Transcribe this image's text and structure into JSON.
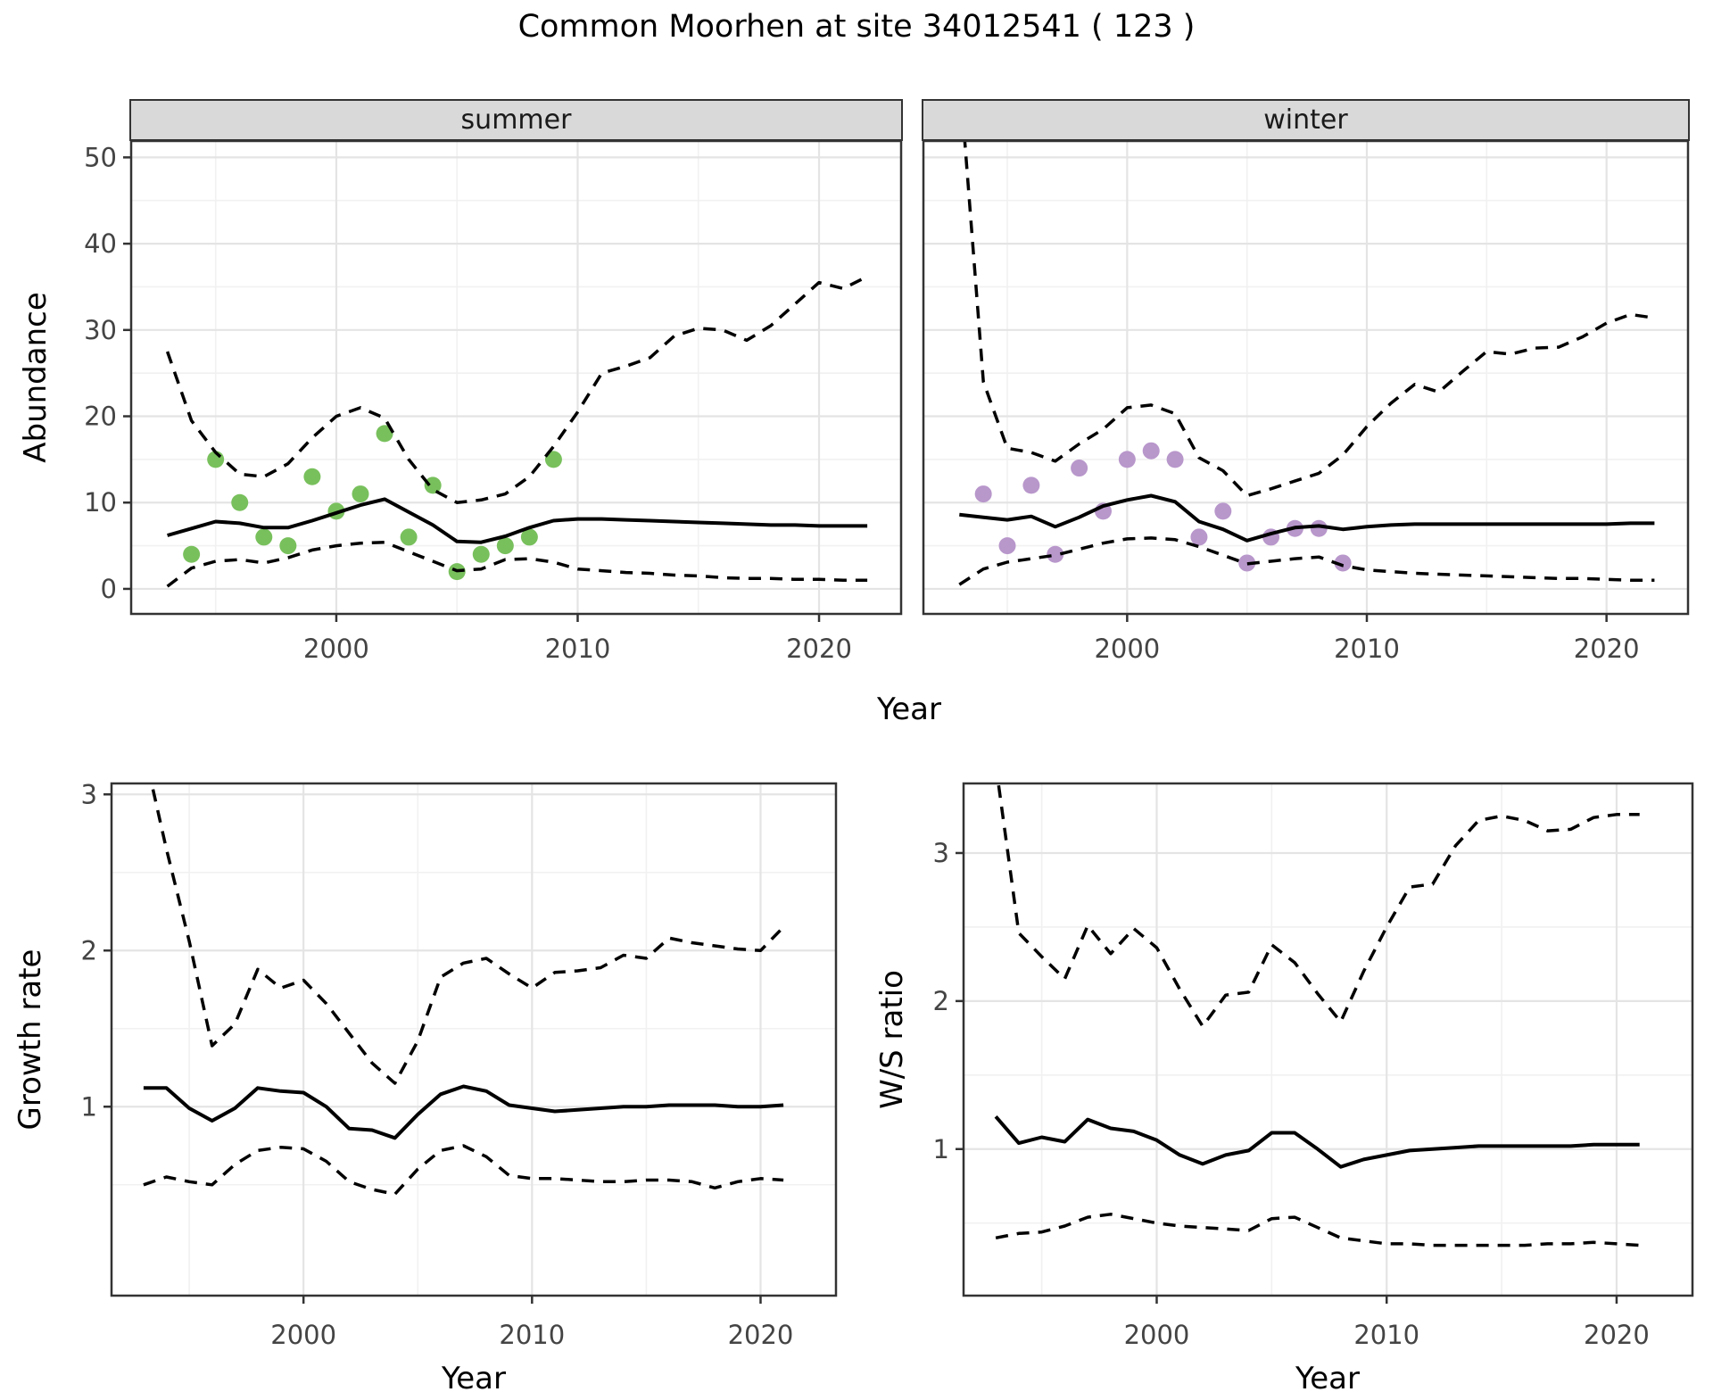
{
  "title": "Common Moorhen at site 34012541 ( 123 )",
  "axes": {
    "abundance_label": "Abundance",
    "year_label": "Year"
  },
  "colors": {
    "summer_points": "#78c05c",
    "winter_points": "#b897cb",
    "line": "#000000",
    "strip_bg": "#d9d9d9",
    "panel_border": "#333333",
    "grid_major": "#e4e4e4",
    "grid_minor": "#f1f1f1",
    "tick_text": "#444444"
  },
  "chart_data": [
    {
      "id": "abundance-summer",
      "type": "line",
      "facet_label": "summer",
      "title": "",
      "xlabel": "Year",
      "ylabel": "Abundance",
      "grid": true,
      "legend": "none",
      "xlim": [
        1991.5,
        2023.4
      ],
      "ylim": [
        -2.9,
        51.9
      ],
      "xticks": [
        2000,
        2010,
        2020
      ],
      "xminor": [
        1995,
        2005,
        2015
      ],
      "yticks": [
        0,
        10,
        20,
        30,
        40,
        50
      ],
      "yminor": [
        5,
        15,
        25,
        35,
        45
      ],
      "x": [
        1993,
        1994,
        1995,
        1996,
        1997,
        1998,
        1999,
        2000,
        2001,
        2002,
        2003,
        2004,
        2005,
        2006,
        2007,
        2008,
        2009,
        2010,
        2011,
        2012,
        2013,
        2014,
        2015,
        2016,
        2017,
        2018,
        2019,
        2020,
        2021,
        2022
      ],
      "series": [
        {
          "name": "median-fit",
          "style": "solid",
          "values": [
            6.2,
            7.0,
            7.8,
            7.6,
            7.1,
            7.1,
            7.9,
            8.8,
            9.7,
            10.4,
            8.9,
            7.4,
            5.5,
            5.4,
            6.1,
            7.1,
            7.9,
            8.1,
            8.1,
            8.0,
            7.9,
            7.8,
            7.7,
            7.6,
            7.5,
            7.4,
            7.4,
            7.3,
            7.3,
            7.3
          ]
        },
        {
          "name": "upper-ci",
          "style": "dashed",
          "values": [
            27.5,
            19.5,
            15.8,
            13.3,
            13.0,
            14.5,
            17.5,
            20.0,
            21.0,
            19.8,
            15.0,
            11.5,
            10.0,
            10.3,
            11.0,
            13.0,
            16.5,
            20.5,
            25.0,
            25.8,
            26.8,
            29.3,
            30.2,
            30.0,
            28.8,
            30.5,
            33.0,
            35.5,
            34.8,
            36.2
          ]
        },
        {
          "name": "lower-ci",
          "style": "dashed",
          "values": [
            0.3,
            2.4,
            3.2,
            3.4,
            3.0,
            3.6,
            4.5,
            5.0,
            5.3,
            5.4,
            4.3,
            3.2,
            2.1,
            2.3,
            3.4,
            3.5,
            3.1,
            2.3,
            2.1,
            1.9,
            1.8,
            1.6,
            1.5,
            1.3,
            1.2,
            1.2,
            1.1,
            1.1,
            1.0,
            1.0
          ]
        },
        {
          "name": "observed-counts",
          "style": "points",
          "color": "#78c05c",
          "x": [
            1994,
            1995,
            1996,
            1997,
            1998,
            1999,
            2000,
            2001,
            2002,
            2003,
            2004,
            2005,
            2006,
            2007,
            2008,
            2009
          ],
          "values": [
            4,
            15,
            10,
            6,
            5,
            13,
            9,
            11,
            18,
            6,
            12,
            2,
            4,
            5,
            6,
            15
          ]
        }
      ]
    },
    {
      "id": "abundance-winter",
      "type": "line",
      "facet_label": "winter",
      "title": "",
      "xlabel": "Year",
      "ylabel": "Abundance",
      "grid": true,
      "legend": "none",
      "xlim": [
        1991.5,
        2023.4
      ],
      "ylim": [
        -2.9,
        51.9
      ],
      "xticks": [
        2000,
        2010,
        2020
      ],
      "xminor": [
        1995,
        2005,
        2015
      ],
      "yticks": [
        0,
        10,
        20,
        30,
        40,
        50
      ],
      "yminor": [
        5,
        15,
        25,
        35,
        45
      ],
      "x": [
        1993,
        1994,
        1995,
        1996,
        1997,
        1998,
        1999,
        2000,
        2001,
        2002,
        2003,
        2004,
        2005,
        2006,
        2007,
        2008,
        2009,
        2010,
        2011,
        2012,
        2013,
        2014,
        2015,
        2016,
        2017,
        2018,
        2019,
        2020,
        2021,
        2022
      ],
      "series": [
        {
          "name": "median-fit",
          "style": "solid",
          "values": [
            8.6,
            8.3,
            8.0,
            8.4,
            7.2,
            8.3,
            9.6,
            10.3,
            10.8,
            10.1,
            7.8,
            6.9,
            5.6,
            6.4,
            7.1,
            7.3,
            6.9,
            7.2,
            7.4,
            7.5,
            7.5,
            7.5,
            7.5,
            7.5,
            7.5,
            7.5,
            7.5,
            7.5,
            7.6,
            7.6
          ]
        },
        {
          "name": "upper-ci",
          "style": "dashed",
          "values": [
            60,
            24,
            16.3,
            15.8,
            14.8,
            16.8,
            18.5,
            21.0,
            21.3,
            20.3,
            15.2,
            13.7,
            10.8,
            11.6,
            12.5,
            13.4,
            15.5,
            18.8,
            21.5,
            23.7,
            22.8,
            25.2,
            27.5,
            27.2,
            27.9,
            28.0,
            29.2,
            30.8,
            31.8,
            31.4
          ]
        },
        {
          "name": "lower-ci",
          "style": "dashed",
          "values": [
            0.5,
            2.3,
            3.1,
            3.5,
            3.9,
            4.6,
            5.3,
            5.8,
            5.9,
            5.7,
            4.9,
            3.9,
            2.9,
            3.2,
            3.5,
            3.7,
            2.7,
            2.2,
            2.0,
            1.8,
            1.7,
            1.6,
            1.5,
            1.4,
            1.3,
            1.2,
            1.2,
            1.1,
            1.0,
            1.0
          ]
        },
        {
          "name": "observed-counts",
          "style": "points",
          "color": "#b897cb",
          "x": [
            1994,
            1995,
            1996,
            1997,
            1998,
            1999,
            2000,
            2001,
            2002,
            2003,
            2004,
            2005,
            2006,
            2007,
            2008,
            2009
          ],
          "values": [
            11,
            5,
            12,
            4,
            14,
            9,
            15,
            16,
            15,
            6,
            9,
            3,
            6,
            7,
            7,
            3
          ]
        }
      ]
    },
    {
      "id": "growth-rate",
      "type": "line",
      "facet_label": "",
      "title": "",
      "xlabel": "Year",
      "ylabel": "Growth rate",
      "grid": true,
      "legend": "none",
      "xlim": [
        1991.6,
        2023.3
      ],
      "ylim": [
        -0.21,
        3.07
      ],
      "xticks": [
        2000,
        2010,
        2020
      ],
      "xminor": [
        1995,
        2005,
        2015
      ],
      "yticks": [
        1,
        2,
        3
      ],
      "yminor": [
        0.5,
        1.5,
        2.5
      ],
      "x": [
        1993,
        1994,
        1995,
        1996,
        1997,
        1998,
        1999,
        2000,
        2001,
        2002,
        2003,
        2004,
        2005,
        2006,
        2007,
        2008,
        2009,
        2010,
        2011,
        2012,
        2013,
        2014,
        2015,
        2016,
        2017,
        2018,
        2019,
        2020,
        2021
      ],
      "series": [
        {
          "name": "median-fit",
          "style": "solid",
          "values": [
            1.12,
            1.12,
            0.99,
            0.91,
            0.99,
            1.12,
            1.1,
            1.09,
            1.0,
            0.86,
            0.85,
            0.8,
            0.95,
            1.08,
            1.13,
            1.1,
            1.01,
            0.99,
            0.97,
            0.98,
            0.99,
            1.0,
            1.0,
            1.01,
            1.01,
            1.01,
            1.0,
            1.0,
            1.01
          ]
        },
        {
          "name": "upper-ci",
          "style": "dashed",
          "values": [
            3.3,
            2.65,
            2.06,
            1.39,
            1.53,
            1.88,
            1.76,
            1.81,
            1.66,
            1.47,
            1.28,
            1.15,
            1.42,
            1.83,
            1.92,
            1.95,
            1.85,
            1.76,
            1.86,
            1.87,
            1.89,
            1.97,
            1.95,
            2.08,
            2.05,
            2.03,
            2.01,
            2.0,
            2.15
          ]
        },
        {
          "name": "lower-ci",
          "style": "dashed",
          "values": [
            0.5,
            0.55,
            0.52,
            0.5,
            0.63,
            0.72,
            0.74,
            0.73,
            0.65,
            0.52,
            0.47,
            0.44,
            0.6,
            0.72,
            0.75,
            0.68,
            0.56,
            0.54,
            0.54,
            0.53,
            0.52,
            0.52,
            0.53,
            0.53,
            0.52,
            0.48,
            0.52,
            0.54,
            0.53
          ]
        }
      ]
    },
    {
      "id": "ws-ratio",
      "type": "line",
      "facet_label": "",
      "title": "",
      "xlabel": "Year",
      "ylabel": "W/S ratio",
      "grid": true,
      "legend": "none",
      "xlim": [
        1991.6,
        2023.3
      ],
      "ylim": [
        0.01,
        3.47
      ],
      "xticks": [
        2000,
        2010,
        2020
      ],
      "xminor": [
        1995,
        2005,
        2015
      ],
      "yticks": [
        1,
        2,
        3
      ],
      "yminor": [
        0.5,
        1.5,
        2.5
      ],
      "x": [
        1993,
        1994,
        1995,
        1996,
        1997,
        1998,
        1999,
        2000,
        2001,
        2002,
        2003,
        2004,
        2005,
        2006,
        2007,
        2008,
        2009,
        2010,
        2011,
        2012,
        2013,
        2014,
        2015,
        2016,
        2017,
        2018,
        2019,
        2020,
        2021
      ],
      "series": [
        {
          "name": "median-fit",
          "style": "solid",
          "values": [
            1.22,
            1.04,
            1.08,
            1.05,
            1.2,
            1.14,
            1.12,
            1.06,
            0.96,
            0.9,
            0.96,
            0.99,
            1.11,
            1.11,
            1.0,
            0.88,
            0.93,
            0.96,
            0.99,
            1.0,
            1.01,
            1.02,
            1.02,
            1.02,
            1.02,
            1.02,
            1.03,
            1.03,
            1.03
          ]
        },
        {
          "name": "upper-ci",
          "style": "dashed",
          "values": [
            3.6,
            2.46,
            2.3,
            2.15,
            2.51,
            2.32,
            2.49,
            2.36,
            2.08,
            1.83,
            2.04,
            2.06,
            2.38,
            2.26,
            2.05,
            1.86,
            2.2,
            2.5,
            2.77,
            2.79,
            3.05,
            3.22,
            3.25,
            3.22,
            3.15,
            3.16,
            3.24,
            3.26,
            3.26
          ]
        },
        {
          "name": "lower-ci",
          "style": "dashed",
          "values": [
            0.4,
            0.43,
            0.44,
            0.48,
            0.54,
            0.56,
            0.53,
            0.5,
            0.48,
            0.47,
            0.46,
            0.45,
            0.53,
            0.54,
            0.47,
            0.4,
            0.38,
            0.36,
            0.36,
            0.35,
            0.35,
            0.35,
            0.35,
            0.35,
            0.36,
            0.36,
            0.37,
            0.36,
            0.35
          ]
        }
      ]
    }
  ]
}
